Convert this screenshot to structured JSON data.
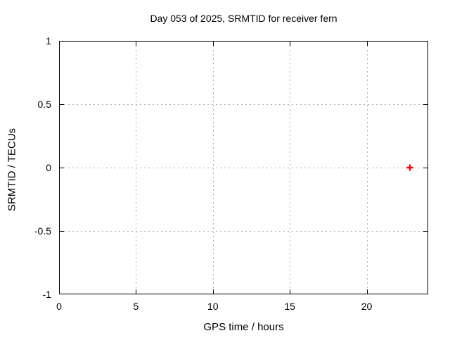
{
  "window": {
    "background": "#ffffff"
  },
  "chart_data": {
    "type": "scatter",
    "title": "Day 053 of 2025, SRMTID for receiver fern",
    "xlabel": "GPS time / hours",
    "ylabel": "SRMTID / TECUs",
    "xlim": [
      0,
      24
    ],
    "ylim": [
      -1,
      1
    ],
    "xticks": [
      0,
      5,
      10,
      15,
      20
    ],
    "yticks": [
      1,
      0.5,
      0,
      -0.5,
      -1
    ],
    "grid": true,
    "legend": "none",
    "series": [
      {
        "name": "SRMTID",
        "marker": "plus",
        "color": "#ff0000",
        "points": [
          {
            "x": 22.8,
            "y": 0.0
          }
        ]
      }
    ],
    "colors": {
      "grid": "#aaaaaa",
      "axis": "#000000",
      "text": "#000000"
    }
  }
}
